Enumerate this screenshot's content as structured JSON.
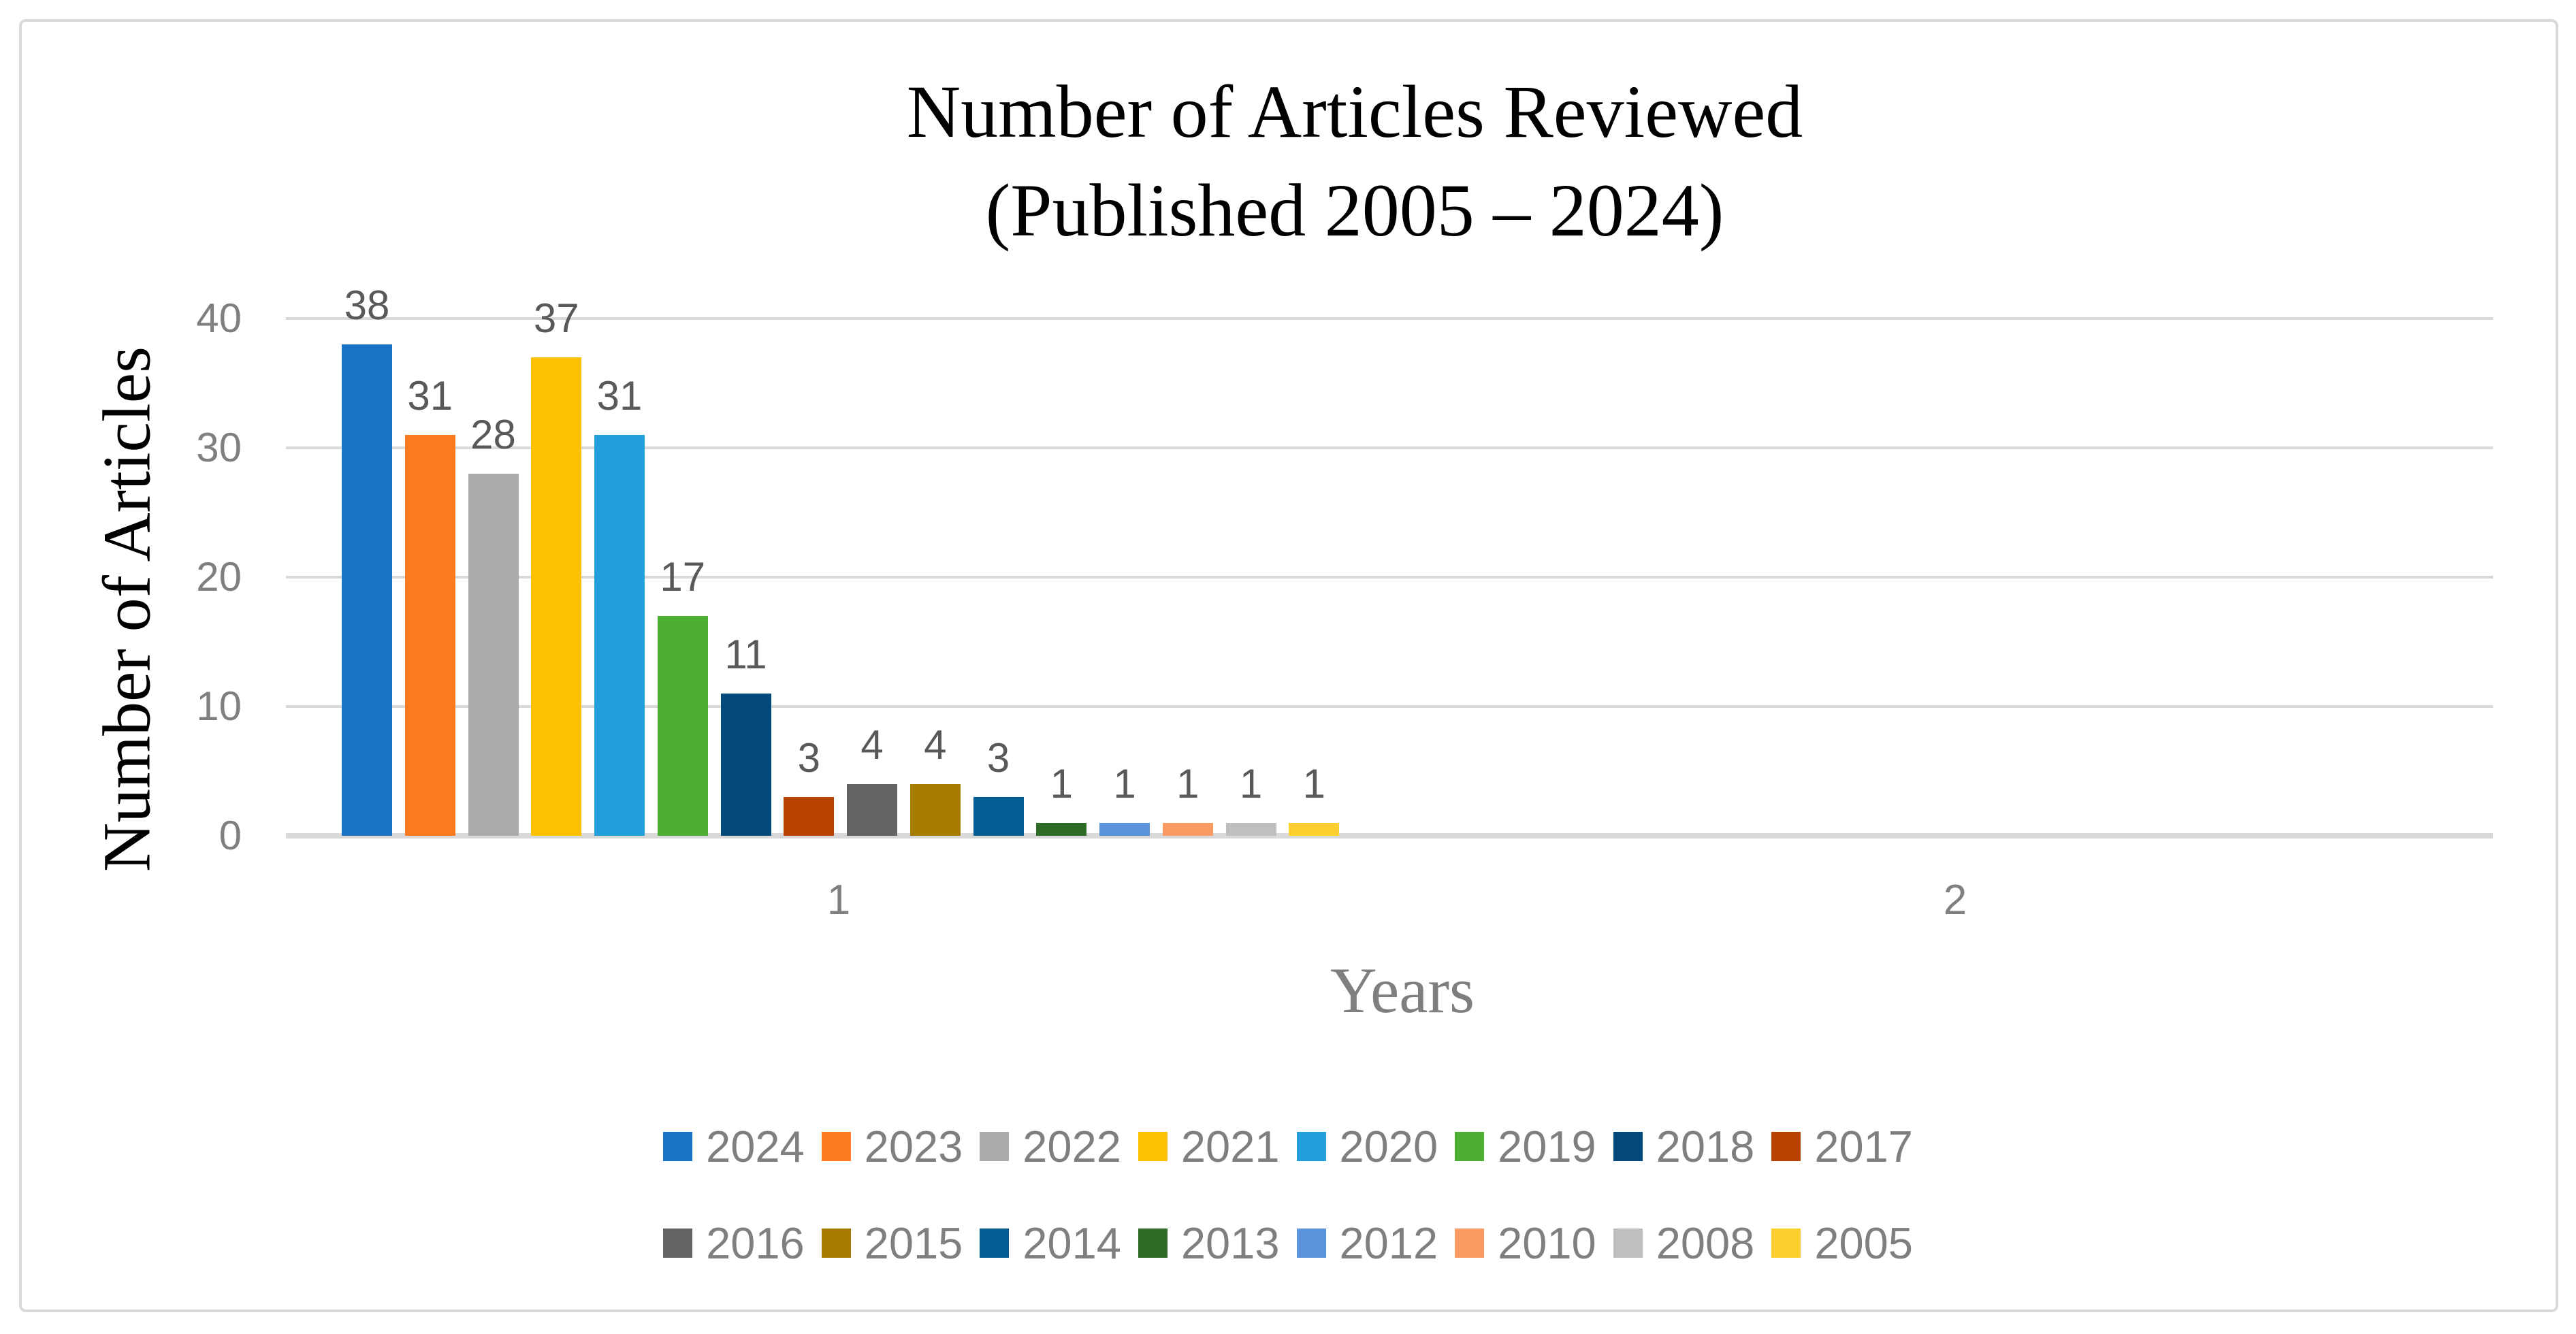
{
  "title": {
    "line1": "Number of Articles Reviewed",
    "line2": "(Published 2005 – 2024)"
  },
  "chart_data": {
    "type": "bar",
    "title": "Number of Articles Reviewed (Published 2005 – 2024)",
    "xlabel": "Years",
    "ylabel": "Number of Articles",
    "categories": [
      "1",
      "2"
    ],
    "ylim": [
      0,
      40
    ],
    "y_ticks": [
      0,
      10,
      20,
      30,
      40
    ],
    "grid": true,
    "legend_position": "bottom-two-rows",
    "data_labels_shown": true,
    "series": [
      {
        "name": "2024",
        "color": "#1B73C5",
        "values": [
          38,
          0
        ]
      },
      {
        "name": "2023",
        "color": "#FB7B20",
        "values": [
          31,
          0
        ]
      },
      {
        "name": "2022",
        "color": "#ABABAB",
        "values": [
          28,
          0
        ]
      },
      {
        "name": "2021",
        "color": "#FEC002",
        "values": [
          37,
          0
        ]
      },
      {
        "name": "2020",
        "color": "#21A0DB",
        "values": [
          31,
          0
        ]
      },
      {
        "name": "2019",
        "color": "#4CAE33",
        "values": [
          17,
          0
        ]
      },
      {
        "name": "2018",
        "color": "#03497C",
        "values": [
          11,
          0
        ]
      },
      {
        "name": "2017",
        "color": "#B84301",
        "values": [
          3,
          0
        ]
      },
      {
        "name": "2016",
        "color": "#646464",
        "values": [
          4,
          0
        ]
      },
      {
        "name": "2015",
        "color": "#A77B00",
        "values": [
          4,
          0
        ]
      },
      {
        "name": "2014",
        "color": "#045D92",
        "values": [
          3,
          0
        ]
      },
      {
        "name": "2013",
        "color": "#2E6B26",
        "values": [
          1,
          0
        ]
      },
      {
        "name": "2012",
        "color": "#5B93DB",
        "values": [
          1,
          0
        ]
      },
      {
        "name": "2010",
        "color": "#FA9B63",
        "values": [
          1,
          0
        ]
      },
      {
        "name": "2008",
        "color": "#BFBFBF",
        "values": [
          1,
          0
        ]
      },
      {
        "name": "2005",
        "color": "#FED02F",
        "values": [
          1,
          0
        ]
      }
    ]
  },
  "palette": {
    "gridline": "#D9D9D9",
    "chart_border": "#D9D9D9",
    "axis_tick_text": "#7F7F7F",
    "data_label_text": "#595959",
    "legend_text": "#7F7F7F",
    "title_text": "#000000"
  }
}
